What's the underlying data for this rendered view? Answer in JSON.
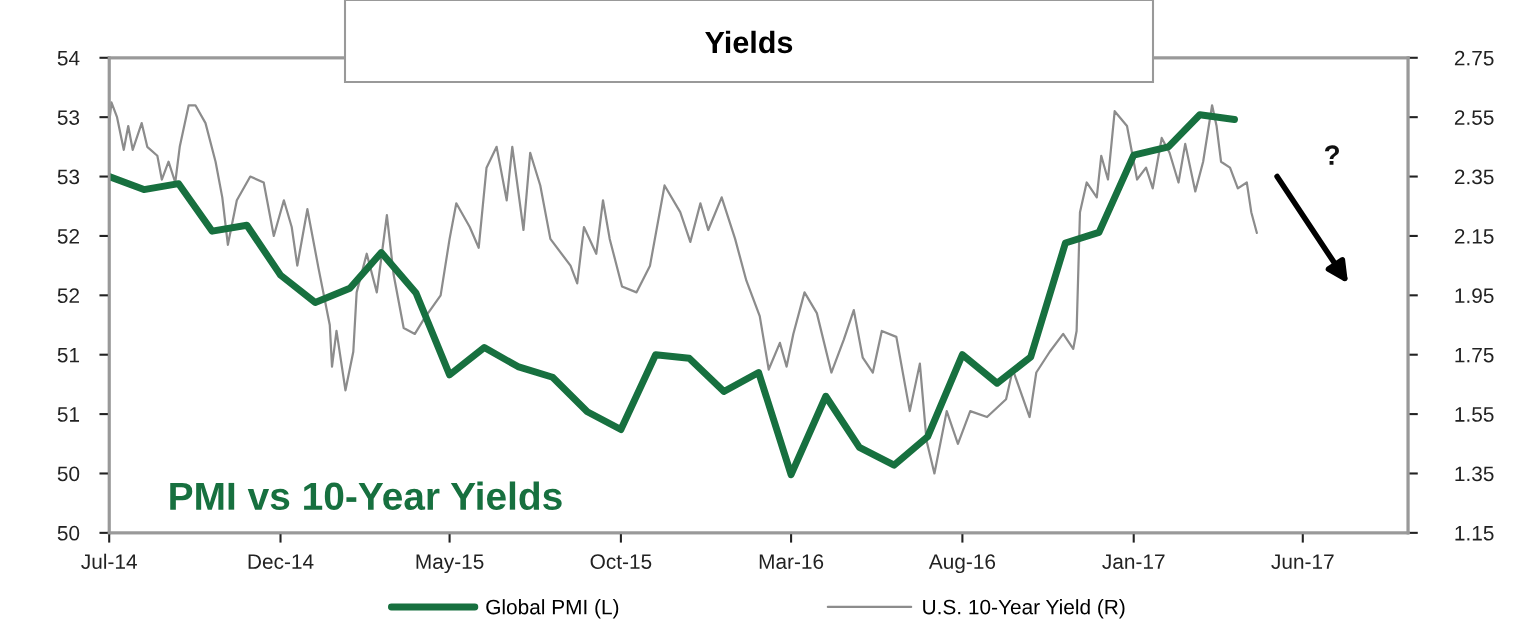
{
  "chart_data": {
    "type": "line",
    "title": "Yields",
    "annotations": [
      "PMI vs 10-Year Yields",
      "?"
    ],
    "xlim": [
      "2014-07-01",
      "2017-09-03"
    ],
    "xticks": [
      {
        "value": "2014-07-01",
        "label": "Jul-14"
      },
      {
        "value": "2014-12-01",
        "label": "Dec-14"
      },
      {
        "value": "2015-05-01",
        "label": "May-15"
      },
      {
        "value": "2015-10-01",
        "label": "Oct-15"
      },
      {
        "value": "2016-03-01",
        "label": "Mar-16"
      },
      {
        "value": "2016-08-01",
        "label": "Aug-16"
      },
      {
        "value": "2017-01-01",
        "label": "Jan-17"
      },
      {
        "value": "2017-06-01",
        "label": "Jun-17"
      }
    ],
    "ylim": [
      50,
      54
    ],
    "yticks": [
      50,
      {
        "value": 50.5,
        "label": "50"
      },
      51,
      {
        "value": 51.5,
        "label": "51"
      },
      52,
      {
        "value": 52.5,
        "label": "52"
      },
      53,
      {
        "value": 53.5,
        "label": "53"
      },
      54
    ],
    "y2lim": [
      1.15,
      2.75
    ],
    "y2ticks": [
      1.15,
      1.35,
      1.55,
      1.75,
      1.95,
      2.15,
      2.35,
      2.55,
      2.75
    ],
    "grid": false,
    "legend": "bottom",
    "series": [
      {
        "name": "Global PMI (L)",
        "color": "#17703f",
        "axis": "y",
        "x": [
          "2014-07",
          "2014-08",
          "2014-09",
          "2014-10",
          "2014-11",
          "2014-12",
          "2015-01",
          "2015-02",
          "2015-03",
          "2015-04",
          "2015-05",
          "2015-06",
          "2015-07",
          "2015-08",
          "2015-09",
          "2015-10",
          "2015-11",
          "2015-12",
          "2016-01",
          "2016-02",
          "2016-03",
          "2016-04",
          "2016-05",
          "2016-06",
          "2016-07",
          "2016-08",
          "2016-09",
          "2016-10",
          "2016-11",
          "2016-12",
          "2017-01",
          "2017-02",
          "2017-03",
          "2017-04"
        ],
        "values": [
          53.0,
          52.89,
          52.94,
          52.54,
          52.59,
          52.17,
          51.94,
          52.06,
          52.36,
          52.02,
          51.33,
          51.56,
          51.4,
          51.31,
          51.02,
          50.87,
          51.5,
          51.47,
          51.19,
          51.35,
          50.49,
          51.15,
          50.72,
          50.57,
          50.81,
          51.5,
          51.26,
          51.48,
          52.44,
          52.53,
          53.18,
          53.25,
          53.52,
          53.48
        ]
      },
      {
        "name": "U.S. 10-Year Yield (R)",
        "color": "#8c8c8c",
        "axis": "y2",
        "x": [
          "2014-07-01",
          "2014-07-03",
          "2014-07-08",
          "2014-07-14",
          "2014-07-18",
          "2014-07-22",
          "2014-07-30",
          "2014-08-04",
          "2014-08-13",
          "2014-08-17",
          "2014-08-23",
          "2014-08-29",
          "2014-09-02",
          "2014-09-10",
          "2014-09-16",
          "2014-09-25",
          "2014-10-04",
          "2014-10-10",
          "2014-10-15",
          "2014-10-23",
          "2014-11-04",
          "2014-11-16",
          "2014-11-25",
          "2014-12-04",
          "2014-12-11",
          "2014-12-16",
          "2014-12-25",
          "2015-01-04",
          "2015-01-14",
          "2015-01-16",
          "2015-01-20",
          "2015-01-28",
          "2015-02-04",
          "2015-02-07",
          "2015-02-16",
          "2015-02-25",
          "2015-03-06",
          "2015-03-12",
          "2015-03-21",
          "2015-03-31",
          "2015-04-08",
          "2015-04-23",
          "2015-05-01",
          "2015-05-07",
          "2015-05-19",
          "2015-05-27",
          "2015-06-03",
          "2015-06-12",
          "2015-06-21",
          "2015-06-26",
          "2015-07-06",
          "2015-07-12",
          "2015-07-21",
          "2015-07-30",
          "2015-08-17",
          "2015-08-23",
          "2015-08-29",
          "2015-09-09",
          "2015-09-15",
          "2015-09-21",
          "2015-10-02",
          "2015-10-15",
          "2015-10-27",
          "2015-11-09",
          "2015-11-23",
          "2015-12-02",
          "2015-12-11",
          "2015-12-18",
          "2015-12-30",
          "2016-01-11",
          "2016-01-21",
          "2016-02-02",
          "2016-02-10",
          "2016-02-20",
          "2016-02-26",
          "2016-03-03",
          "2016-03-13",
          "2016-03-24",
          "2016-04-06",
          "2016-04-17",
          "2016-04-26",
          "2016-05-04",
          "2016-05-13",
          "2016-05-21",
          "2016-06-03",
          "2016-06-15",
          "2016-06-24",
          "2016-06-30",
          "2016-07-07",
          "2016-07-18",
          "2016-07-28",
          "2016-08-08",
          "2016-08-23",
          "2016-09-09",
          "2016-09-15",
          "2016-09-30",
          "2016-10-06",
          "2016-10-18",
          "2016-10-30",
          "2016-11-08",
          "2016-11-11",
          "2016-11-14",
          "2016-11-20",
          "2016-11-29",
          "2016-12-03",
          "2016-12-09",
          "2016-12-15",
          "2016-12-26",
          "2017-01-04",
          "2017-01-12",
          "2017-01-18",
          "2017-01-26",
          "2017-02-02",
          "2017-02-10",
          "2017-02-16",
          "2017-02-25",
          "2017-03-04",
          "2017-03-12",
          "2017-03-16",
          "2017-03-20",
          "2017-03-28",
          "2017-04-04",
          "2017-04-12",
          "2017-04-16",
          "2017-04-21"
        ],
        "values": [
          2.53,
          2.6,
          2.55,
          2.44,
          2.52,
          2.44,
          2.53,
          2.45,
          2.42,
          2.34,
          2.4,
          2.33,
          2.45,
          2.59,
          2.59,
          2.53,
          2.4,
          2.28,
          2.12,
          2.27,
          2.35,
          2.33,
          2.15,
          2.27,
          2.18,
          2.05,
          2.24,
          2.04,
          1.85,
          1.71,
          1.83,
          1.63,
          1.76,
          1.96,
          2.09,
          1.96,
          2.22,
          2.02,
          1.84,
          1.82,
          1.87,
          1.95,
          2.14,
          2.26,
          2.18,
          2.11,
          2.38,
          2.45,
          2.27,
          2.45,
          2.17,
          2.43,
          2.32,
          2.14,
          2.05,
          1.99,
          2.18,
          2.09,
          2.27,
          2.14,
          1.98,
          1.96,
          2.05,
          2.32,
          2.23,
          2.13,
          2.26,
          2.17,
          2.28,
          2.14,
          2.0,
          1.88,
          1.7,
          1.79,
          1.71,
          1.82,
          1.96,
          1.89,
          1.69,
          1.8,
          1.9,
          1.74,
          1.69,
          1.83,
          1.81,
          1.56,
          1.72,
          1.46,
          1.35,
          1.56,
          1.45,
          1.56,
          1.54,
          1.6,
          1.7,
          1.54,
          1.69,
          1.76,
          1.82,
          1.77,
          1.83,
          2.23,
          2.33,
          2.28,
          2.42,
          2.34,
          2.57,
          2.52,
          2.34,
          2.38,
          2.31,
          2.48,
          2.43,
          2.33,
          2.46,
          2.3,
          2.4,
          2.59,
          2.52,
          2.4,
          2.38,
          2.31,
          2.33,
          2.23,
          2.16
        ]
      }
    ]
  }
}
